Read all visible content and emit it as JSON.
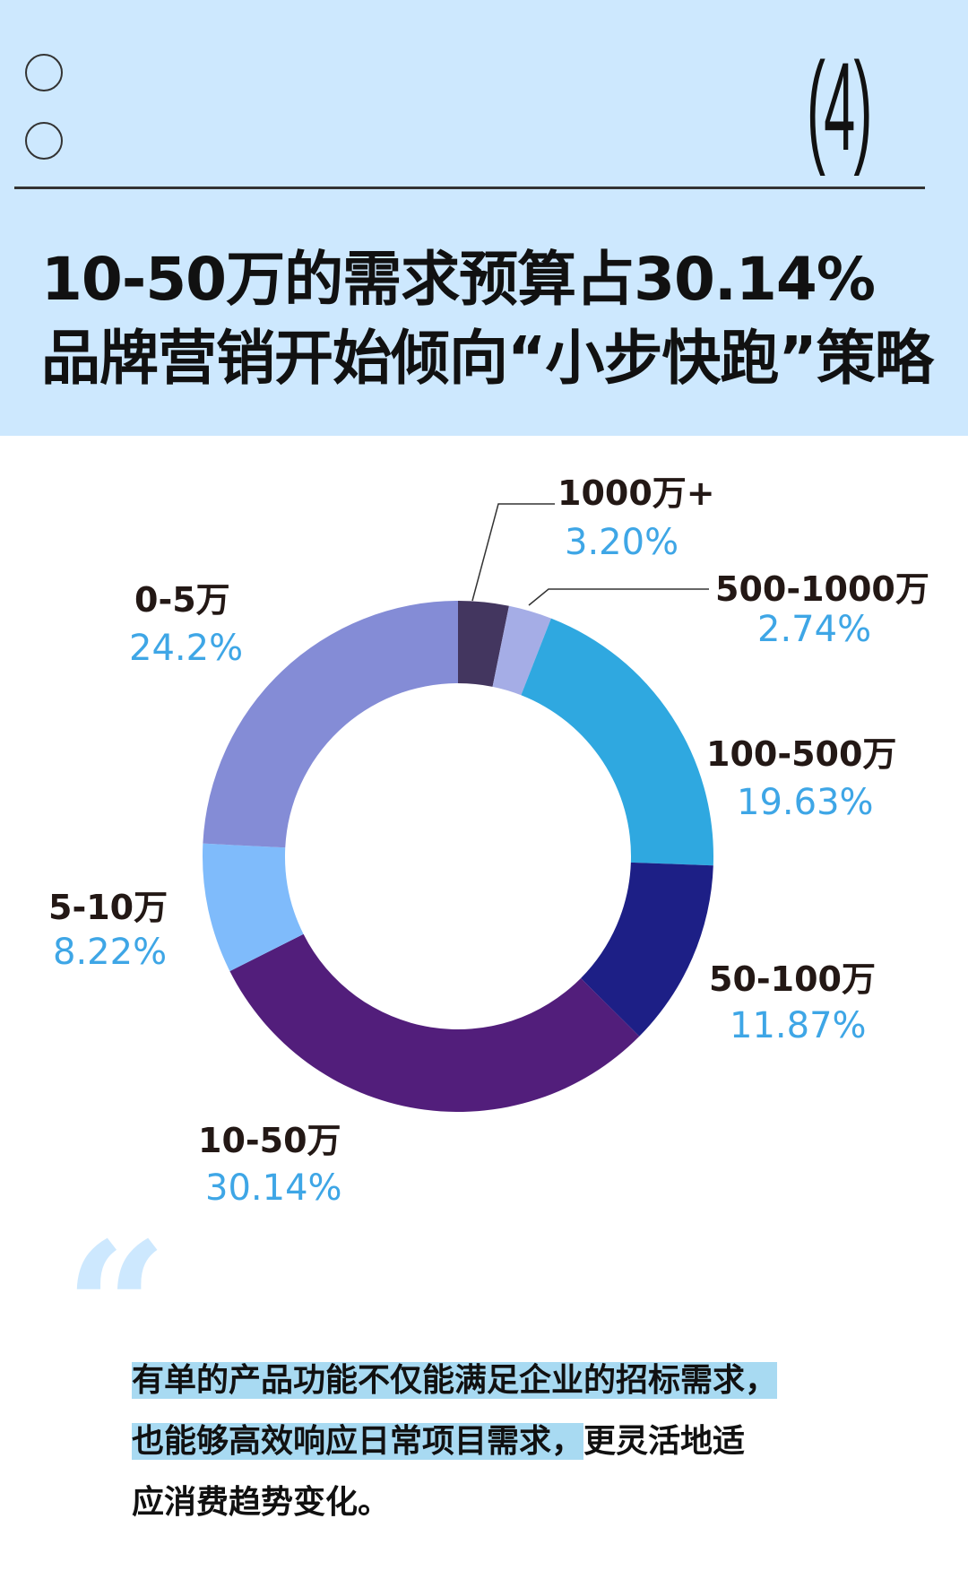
{
  "header": {
    "section_number": "(4)",
    "title_line1": "10-50万的需求预算占30.14%",
    "title_line2": "品牌营销开始倾向“小步快跑”策略",
    "background_color": "#cde8fe"
  },
  "chart_data": {
    "type": "pie",
    "variant": "donut",
    "start": "top",
    "direction": "clockwise",
    "categories": [
      "1000万+",
      "500-1000万",
      "100-500万",
      "50-100万",
      "10-50万",
      "5-10万",
      "0-5万"
    ],
    "values": [
      3.2,
      2.74,
      19.63,
      11.87,
      30.14,
      8.22,
      24.2
    ],
    "value_labels": [
      "3.20%",
      "2.74%",
      "19.63%",
      "11.87%",
      "30.14%",
      "8.22%",
      "24.2%"
    ],
    "colors": [
      "#43365f",
      "#a5ade6",
      "#2fa8e0",
      "#1d1f86",
      "#521e7b",
      "#7fbbfb",
      "#848cd6"
    ],
    "label_color": "#231815",
    "value_color": "#3ea6e6"
  },
  "quote": {
    "line1": "有单的产品功能不仅能满足企业的招标需求，",
    "line2_highlight": "也能够高效响应日常项目需求，",
    "line2_rest": "更灵活地适",
    "line3": "应消费趋势变化。",
    "highlight_color": "#a8daf2"
  }
}
